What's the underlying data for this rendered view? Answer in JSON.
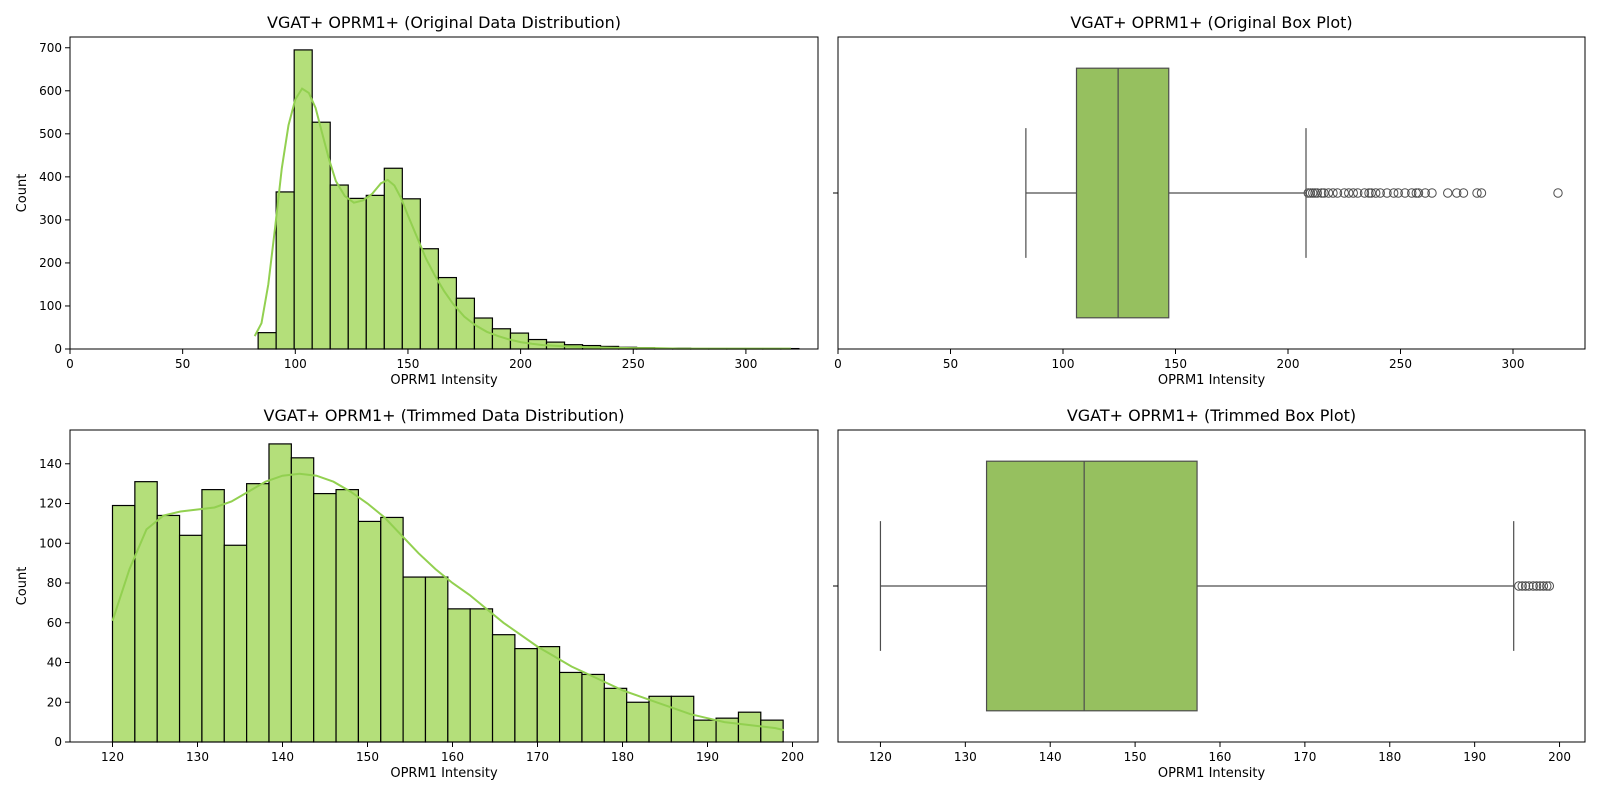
{
  "colors": {
    "bar_fill": "#b4df7a",
    "bar_edge": "#000000",
    "kde_line": "#92d050",
    "box_fill": "#96c05f",
    "box_line": "#4d4d4d",
    "flier_edge": "#4d4d4d"
  },
  "chart_data": [
    {
      "type": "bar",
      "title": "VGAT+ OPRM1+ (Original Data Distribution)",
      "xlabel": "OPRM1 Intensity",
      "ylabel": "Count",
      "xlim": [
        0,
        332
      ],
      "ylim": [
        0,
        725
      ],
      "xticks": [
        0,
        50,
        100,
        150,
        200,
        250,
        300
      ],
      "yticks": [
        0,
        100,
        200,
        300,
        400,
        500,
        600,
        700
      ],
      "bin_start": 83.5,
      "bin_width": 8,
      "values": [
        38,
        365,
        695,
        527,
        381,
        350,
        357,
        420,
        349,
        233,
        166,
        118,
        72,
        47,
        37,
        22,
        16,
        10,
        8,
        6,
        4,
        3,
        2,
        2,
        1,
        1,
        1,
        1,
        1,
        1
      ],
      "kde": {
        "x": [
          82,
          85,
          88,
          91,
          94,
          97,
          100,
          103,
          106,
          109,
          112,
          115,
          118,
          122,
          126,
          130,
          134,
          138,
          141,
          144,
          147,
          150,
          154,
          158,
          162,
          166,
          170,
          175,
          180,
          185,
          190,
          195,
          200,
          205,
          210,
          220,
          230,
          240,
          250,
          260,
          270,
          280,
          290,
          300,
          310,
          320
        ],
        "y": [
          30,
          60,
          150,
          280,
          420,
          520,
          580,
          605,
          595,
          560,
          500,
          440,
          390,
          355,
          340,
          345,
          360,
          385,
          393,
          380,
          350,
          310,
          260,
          210,
          170,
          135,
          105,
          75,
          55,
          40,
          30,
          22,
          16,
          12,
          9,
          6,
          4,
          3,
          2,
          2,
          1,
          1,
          1,
          1,
          1,
          1
        ]
      }
    },
    {
      "type": "box",
      "title": "VGAT+ OPRM1+ (Original Box Plot)",
      "xlabel": "OPRM1 Intensity",
      "xlim": [
        0,
        332
      ],
      "xticks": [
        0,
        50,
        100,
        150,
        200,
        250,
        300
      ],
      "whisker_low": 83.5,
      "q1": 106,
      "median": 124.5,
      "q3": 147,
      "whisker_high": 208,
      "fliers": [
        209,
        210,
        211,
        212,
        213,
        215,
        216,
        218,
        220,
        222,
        225,
        227,
        229,
        231,
        234,
        236,
        237,
        239,
        241,
        244,
        247,
        249,
        252,
        255,
        257,
        258,
        261,
        264,
        271,
        275,
        278,
        284,
        286,
        320
      ]
    },
    {
      "type": "bar",
      "title": "VGAT+ OPRM1+ (Trimmed Data Distribution)",
      "xlabel": "OPRM1 Intensity",
      "ylabel": "Count",
      "xlim": [
        115,
        203
      ],
      "ylim": [
        0,
        157
      ],
      "xticks": [
        120,
        130,
        140,
        150,
        160,
        170,
        180,
        190,
        200
      ],
      "yticks": [
        0,
        20,
        40,
        60,
        80,
        100,
        120,
        140
      ],
      "bin_start": 120,
      "bin_width": 2.63,
      "values": [
        119,
        131,
        114,
        104,
        127,
        99,
        130,
        150,
        143,
        125,
        127,
        111,
        113,
        83,
        83,
        67,
        67,
        54,
        47,
        48,
        35,
        34,
        27,
        20,
        23,
        23,
        11,
        12,
        15,
        11
      ],
      "kde": {
        "x": [
          120,
          122,
          124,
          126,
          128,
          130,
          132,
          134,
          136,
          138,
          140,
          142,
          144,
          146,
          148,
          150,
          152,
          154,
          156,
          158,
          160,
          162,
          164,
          166,
          168,
          170,
          172,
          174,
          176,
          178,
          180,
          182,
          184,
          186,
          188,
          190,
          192,
          194,
          196,
          198,
          199
        ],
        "y": [
          61,
          87,
          107,
          114,
          116,
          117,
          118,
          121,
          126,
          131,
          134,
          135,
          134,
          131,
          126,
          120,
          113,
          104,
          95,
          87,
          80,
          74,
          67,
          60,
          54,
          48,
          43,
          38,
          34,
          30,
          26,
          23,
          20,
          17,
          14,
          12,
          10,
          9,
          8,
          7,
          6
        ]
      }
    },
    {
      "type": "box",
      "title": "VGAT+ OPRM1+ (Trimmed Box Plot)",
      "xlabel": "OPRM1 Intensity",
      "xlim": [
        115,
        203
      ],
      "xticks": [
        120,
        130,
        140,
        150,
        160,
        170,
        180,
        190,
        200
      ],
      "whisker_low": 120,
      "q1": 132.5,
      "median": 144,
      "q3": 157.3,
      "whisker_high": 194.6,
      "fliers": [
        195.2,
        195.6,
        196,
        196.4,
        196.9,
        197.3,
        197.7,
        198.1,
        198.5,
        198.8
      ]
    }
  ]
}
